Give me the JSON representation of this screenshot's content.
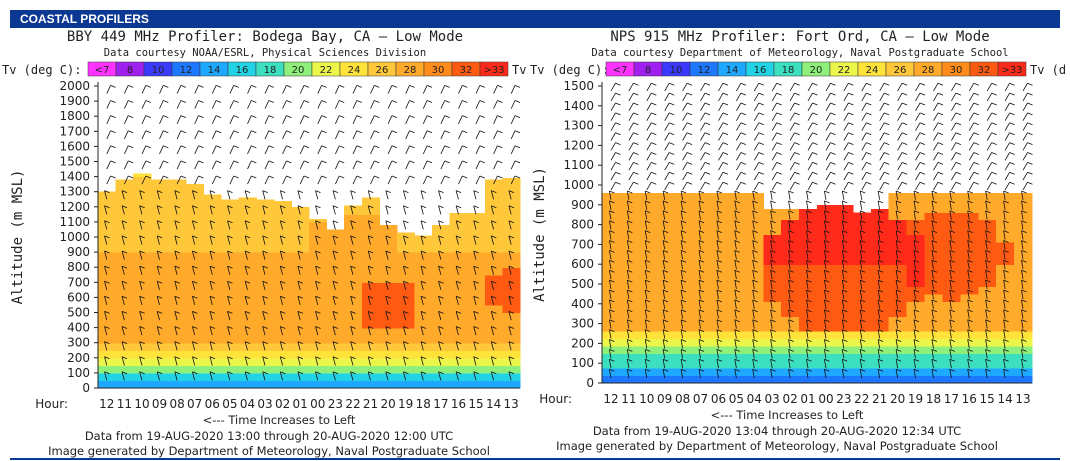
{
  "banner": {
    "title": "COASTAL PROFILERS"
  },
  "scale": {
    "label": "Tv (deg C):",
    "labels": [
      "<7",
      "8",
      "10",
      "12",
      "14",
      "16",
      "18",
      "20",
      "22",
      "24",
      "26",
      "28",
      "30",
      "32",
      ">33"
    ],
    "colors": [
      "#ff33ff",
      "#a020f0",
      "#3a3aff",
      "#1e78ff",
      "#1ea8ff",
      "#22d3e6",
      "#3ce0c0",
      "#8ef07a",
      "#ecf64a",
      "#ffe23a",
      "#ffc83a",
      "#ffaa2a",
      "#ff8c1a",
      "#ff5a12",
      "#ff2a1a"
    ]
  },
  "chart_data": [
    {
      "type": "heatmap",
      "title": "BBY 449 MHz Profiler:  Bodega Bay, CA   – Low Mode",
      "subtitle": "Data courtesy NOAA/ESRL, Physical Sciences Division",
      "ylabel": "Altitude (m MSL)",
      "xlabel": "<--- Time Increases to Left",
      "x_prefix": "Hour:",
      "categories": [
        "12",
        "11",
        "10",
        "09",
        "08",
        "07",
        "06",
        "05",
        "04",
        "03",
        "02",
        "01",
        "00",
        "23",
        "22",
        "21",
        "20",
        "19",
        "18",
        "17",
        "16",
        "15",
        "14",
        "13"
      ],
      "y_ticks": [
        0,
        100,
        200,
        300,
        400,
        500,
        600,
        700,
        800,
        900,
        1000,
        1100,
        1200,
        1300,
        1400,
        1500,
        1600,
        1700,
        1800,
        1900,
        2000
      ],
      "ylim": [
        0,
        2000
      ],
      "top_of_color_fill_m": [
        1300,
        1380,
        1420,
        1380,
        1380,
        1350,
        1280,
        1250,
        1260,
        1250,
        1240,
        1200,
        1120,
        1050,
        1210,
        1260,
        1080,
        1030,
        1010,
        1080,
        1160,
        1160,
        1380,
        1390
      ],
      "footer_lines": [
        "Data from 19-AUG-2020 13:00 through 20-AUG-2020 12:00 UTC",
        "Image generated by Department of Meteorology, Naval Postgraduate School"
      ]
    },
    {
      "type": "heatmap",
      "title": "NPS 915 MHz Profiler:  Fort Ord, CA   – Low Mode",
      "subtitle": "Data courtesy Department of Meteorology, Naval Postgraduate School",
      "ylabel": "Altitude (m MSL)",
      "xlabel": "<--- Time Increases to Left",
      "x_prefix": "Hour:",
      "categories": [
        "12",
        "11",
        "10",
        "09",
        "08",
        "07",
        "06",
        "05",
        "04",
        "03",
        "02",
        "01",
        "00",
        "23",
        "22",
        "21",
        "20",
        "19",
        "18",
        "17",
        "16",
        "15",
        "14",
        "13"
      ],
      "y_ticks": [
        0,
        100,
        200,
        300,
        400,
        500,
        600,
        700,
        800,
        900,
        1000,
        1100,
        1200,
        1300,
        1400,
        1500
      ],
      "ylim": [
        0,
        1500
      ],
      "top_of_color_fill_m": [
        960,
        960,
        960,
        960,
        960,
        960,
        960,
        960,
        960,
        880,
        880,
        880,
        900,
        900,
        860,
        880,
        960,
        960,
        960,
        960,
        960,
        960,
        960,
        960
      ],
      "footer_lines": [
        "Data from 19-AUG-2020 13:04 through 20-AUG-2020 12:34 UTC",
        "Image generated by Department of Meteorology, Naval Postgraduate School"
      ]
    }
  ]
}
